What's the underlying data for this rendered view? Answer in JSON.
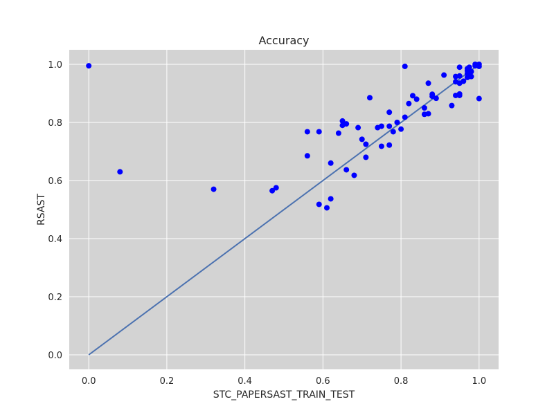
{
  "chart_data": {
    "type": "scatter",
    "title": "Accuracy",
    "xlabel": "STC_PAPERSAST_TRAIN_TEST",
    "ylabel": "RSAST",
    "xlim": [
      -0.05,
      1.05
    ],
    "ylim": [
      -0.05,
      1.05
    ],
    "xticks": [
      0.0,
      0.2,
      0.4,
      0.6,
      0.8,
      1.0
    ],
    "yticks": [
      0.0,
      0.2,
      0.4,
      0.6,
      0.8,
      1.0
    ],
    "xtick_labels": [
      "0.0",
      "0.2",
      "0.4",
      "0.6",
      "0.8",
      "1.0"
    ],
    "ytick_labels": [
      "0.0",
      "0.2",
      "0.4",
      "0.6",
      "0.8",
      "1.0"
    ],
    "grid": true,
    "background": "#d3d3d3",
    "point_color": "#0000ff",
    "line_color": "#4c72b0",
    "reference_line": [
      [
        0,
        0
      ],
      [
        1,
        1
      ]
    ],
    "points": [
      [
        0.0,
        0.995
      ],
      [
        0.08,
        0.63
      ],
      [
        0.32,
        0.57
      ],
      [
        0.47,
        0.565
      ],
      [
        0.48,
        0.575
      ],
      [
        0.56,
        0.685
      ],
      [
        0.56,
        0.768
      ],
      [
        0.59,
        0.768
      ],
      [
        0.59,
        0.518
      ],
      [
        0.61,
        0.506
      ],
      [
        0.62,
        0.537
      ],
      [
        0.62,
        0.66
      ],
      [
        0.64,
        0.763
      ],
      [
        0.65,
        0.79
      ],
      [
        0.65,
        0.805
      ],
      [
        0.66,
        0.795
      ],
      [
        0.66,
        0.637
      ],
      [
        0.68,
        0.618
      ],
      [
        0.69,
        0.782
      ],
      [
        0.7,
        0.742
      ],
      [
        0.71,
        0.725
      ],
      [
        0.71,
        0.68
      ],
      [
        0.72,
        0.885
      ],
      [
        0.74,
        0.782
      ],
      [
        0.75,
        0.787
      ],
      [
        0.75,
        0.718
      ],
      [
        0.77,
        0.722
      ],
      [
        0.77,
        0.787
      ],
      [
        0.77,
        0.835
      ],
      [
        0.78,
        0.768
      ],
      [
        0.79,
        0.8
      ],
      [
        0.8,
        0.777
      ],
      [
        0.81,
        0.818
      ],
      [
        0.81,
        0.993
      ],
      [
        0.82,
        0.865
      ],
      [
        0.83,
        0.892
      ],
      [
        0.84,
        0.88
      ],
      [
        0.86,
        0.85
      ],
      [
        0.86,
        0.828
      ],
      [
        0.87,
        0.83
      ],
      [
        0.87,
        0.935
      ],
      [
        0.88,
        0.89
      ],
      [
        0.88,
        0.897
      ],
      [
        0.89,
        0.883
      ],
      [
        0.91,
        0.963
      ],
      [
        0.93,
        0.858
      ],
      [
        0.94,
        0.893
      ],
      [
        0.94,
        0.94
      ],
      [
        0.94,
        0.958
      ],
      [
        0.95,
        0.898
      ],
      [
        0.95,
        0.893
      ],
      [
        0.95,
        0.935
      ],
      [
        0.95,
        0.96
      ],
      [
        0.95,
        0.99
      ],
      [
        0.96,
        0.942
      ],
      [
        0.97,
        0.955
      ],
      [
        0.97,
        0.968
      ],
      [
        0.97,
        0.978
      ],
      [
        0.97,
        0.985
      ],
      [
        0.975,
        0.99
      ],
      [
        0.98,
        0.958
      ],
      [
        0.98,
        0.975
      ],
      [
        0.99,
        1.0
      ],
      [
        0.99,
        0.995
      ],
      [
        1.0,
        1.0
      ],
      [
        1.0,
        0.993
      ],
      [
        1.0,
        0.882
      ]
    ]
  }
}
